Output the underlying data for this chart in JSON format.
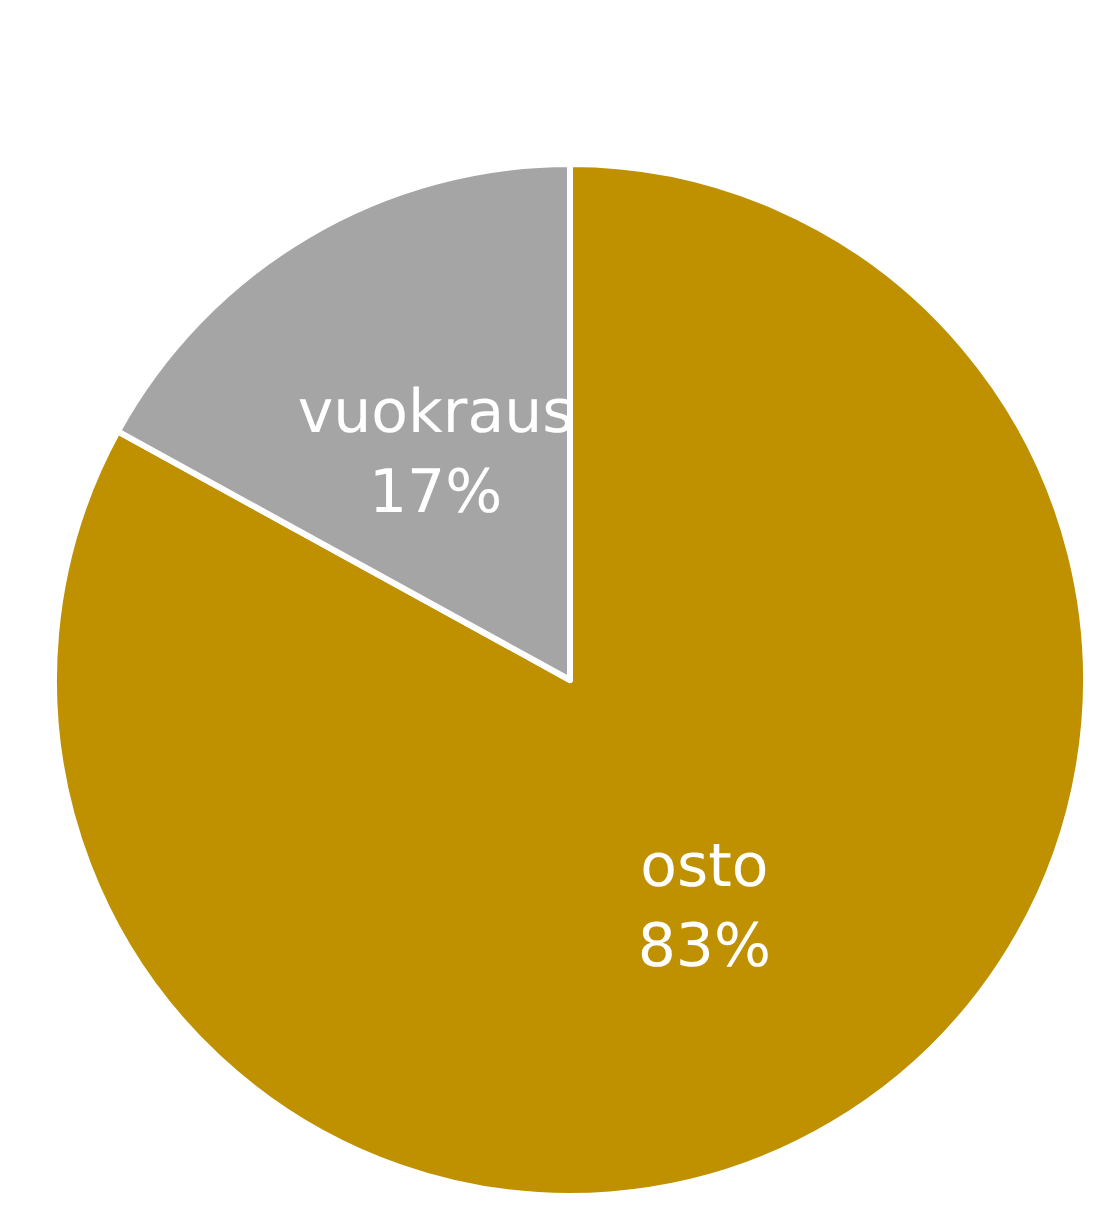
{
  "chart_data": {
    "type": "pie",
    "categories": [
      "osto",
      "vuokraus"
    ],
    "values": [
      83,
      17
    ],
    "colors": [
      "#bf9000",
      "#a5a5a5"
    ],
    "value_labels": [
      "83%",
      "17%"
    ],
    "legend": false
  }
}
